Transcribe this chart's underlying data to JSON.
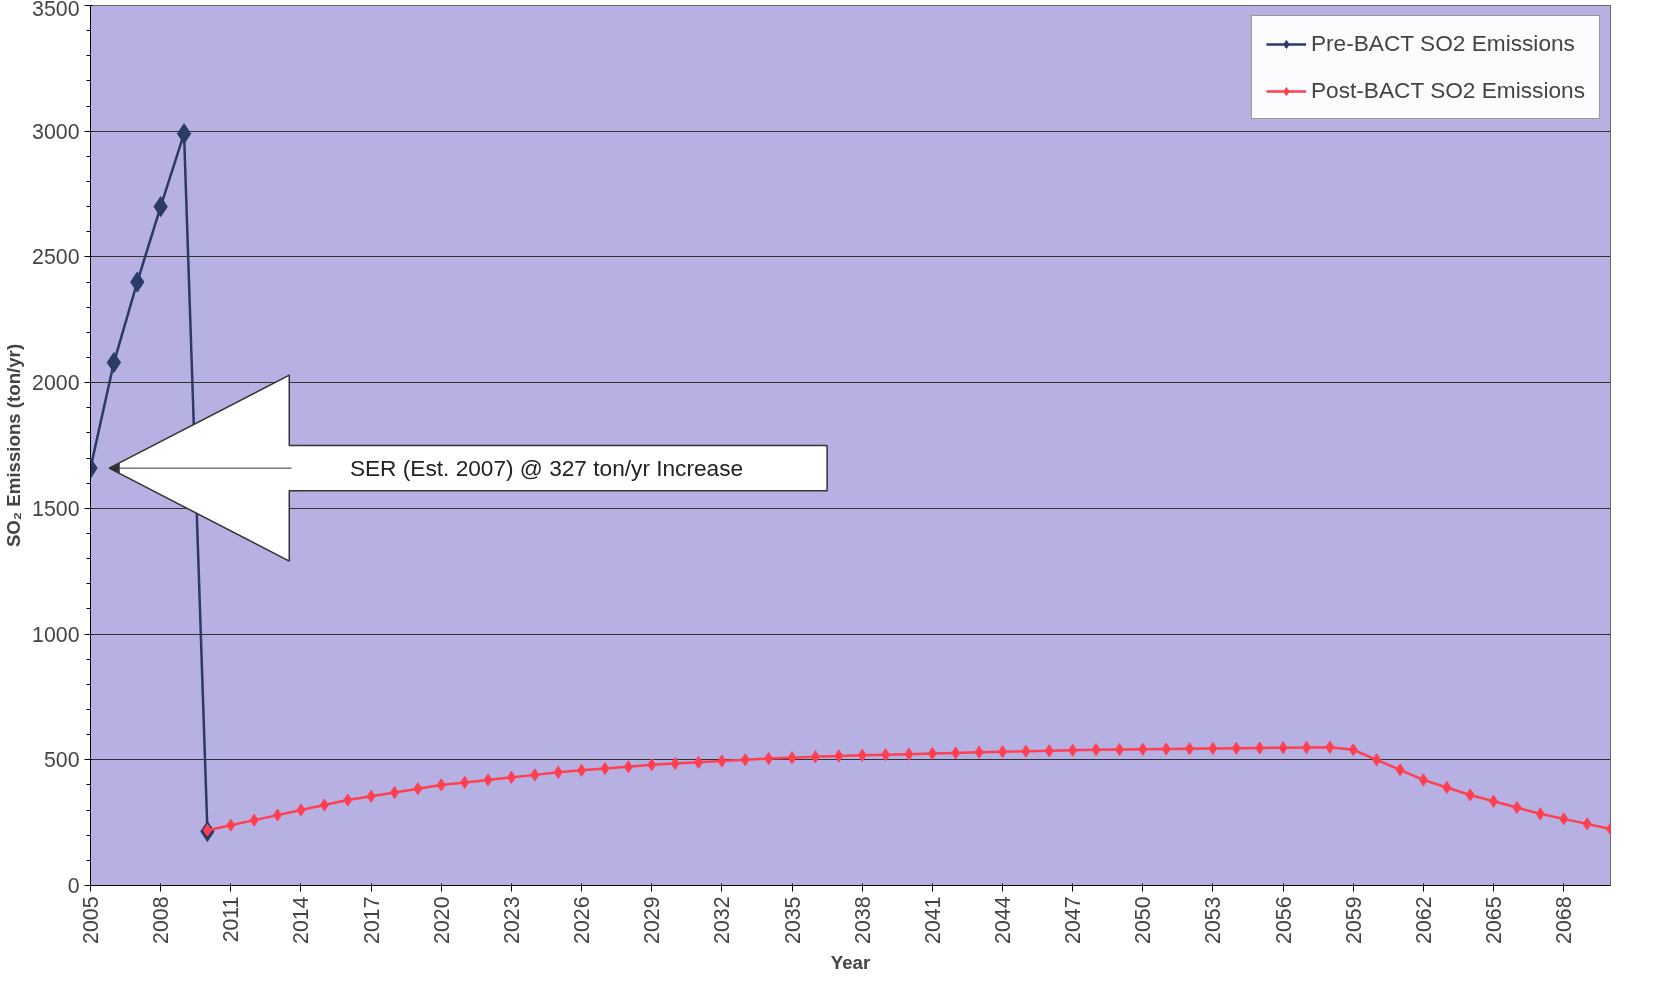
{
  "chart_data": {
    "type": "line",
    "xlabel": "Year",
    "ylabel": "SO₂ Emissions (ton/yr)",
    "xlim": [
      2005,
      2070
    ],
    "xticks": [
      2005,
      2008,
      2011,
      2014,
      2017,
      2020,
      2023,
      2026,
      2029,
      2032,
      2035,
      2038,
      2041,
      2044,
      2047,
      2050,
      2053,
      2056,
      2059,
      2062,
      2065,
      2068
    ],
    "ylim": [
      0,
      3500
    ],
    "yticks": [
      0,
      500,
      1000,
      1500,
      2000,
      2500,
      3000,
      3500
    ],
    "grid": "y",
    "legend": "top right",
    "marker": "diamond",
    "line_style": "solid",
    "annotations": [
      "SER (Est. 2007) @ 327 ton/yr Increase"
    ],
    "series": [
      {
        "name": "Pre-BACT SO2 Emissions",
        "color": "#2b3a67",
        "x": [
          2005,
          2006,
          2007,
          2008,
          2009,
          2010
        ],
        "values": [
          1660,
          2080,
          2400,
          2700,
          2990,
          215
        ]
      },
      {
        "name": "Post-BACT SO2 Emissions",
        "color": "#ff4050",
        "x": [
          2010,
          2011,
          2012,
          2013,
          2014,
          2015,
          2016,
          2017,
          2018,
          2019,
          2020,
          2021,
          2022,
          2023,
          2024,
          2025,
          2026,
          2027,
          2028,
          2029,
          2030,
          2031,
          2032,
          2033,
          2034,
          2035,
          2036,
          2037,
          2038,
          2039,
          2040,
          2041,
          2042,
          2043,
          2044,
          2045,
          2046,
          2047,
          2048,
          2049,
          2050,
          2051,
          2052,
          2053,
          2054,
          2055,
          2056,
          2057,
          2058,
          2059,
          2060,
          2061,
          2062,
          2063,
          2064,
          2065,
          2066,
          2067,
          2068,
          2069,
          2070
        ],
        "values": [
          220,
          240,
          260,
          280,
          300,
          320,
          340,
          355,
          370,
          385,
          400,
          410,
          420,
          430,
          440,
          450,
          458,
          465,
          472,
          480,
          485,
          490,
          495,
          500,
          505,
          508,
          512,
          515,
          518,
          520,
          522,
          525,
          527,
          530,
          532,
          534,
          536,
          538,
          540,
          541,
          542,
          543,
          544,
          545,
          546,
          547,
          548,
          549,
          550,
          540,
          500,
          460,
          420,
          390,
          360,
          335,
          310,
          285,
          265,
          245,
          225
        ]
      }
    ]
  }
}
